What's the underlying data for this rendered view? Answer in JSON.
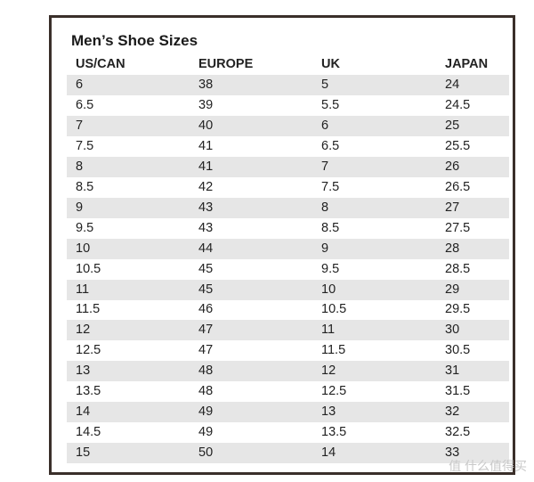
{
  "table": {
    "title": "Men’s Shoe Sizes",
    "header": [
      "US/CAN",
      "EUROPE",
      "UK",
      "JAPAN"
    ],
    "rows": [
      [
        "6",
        "38",
        "5",
        "24"
      ],
      [
        "6.5",
        "39",
        "5.5",
        "24.5"
      ],
      [
        "7",
        "40",
        "6",
        "25"
      ],
      [
        "7.5",
        "41",
        "6.5",
        "25.5"
      ],
      [
        "8",
        "41",
        "7",
        "26"
      ],
      [
        "8.5",
        "42",
        "7.5",
        "26.5"
      ],
      [
        "9",
        "43",
        "8",
        "27"
      ],
      [
        "9.5",
        "43",
        "8.5",
        "27.5"
      ],
      [
        "10",
        "44",
        "9",
        "28"
      ],
      [
        "10.5",
        "45",
        "9.5",
        "28.5"
      ],
      [
        "11",
        "45",
        "10",
        "29"
      ],
      [
        "11.5",
        "46",
        "10.5",
        "29.5"
      ],
      [
        "12",
        "47",
        "11",
        "30"
      ],
      [
        "12.5",
        "47",
        "11.5",
        "30.5"
      ],
      [
        "13",
        "48",
        "12",
        "31"
      ],
      [
        "13.5",
        "48",
        "12.5",
        "31.5"
      ],
      [
        "14",
        "49",
        "13",
        "32"
      ],
      [
        "14.5",
        "49",
        "13.5",
        "32.5"
      ],
      [
        "15",
        "50",
        "14",
        "33"
      ]
    ]
  },
  "watermark": "值 什么值得买"
}
